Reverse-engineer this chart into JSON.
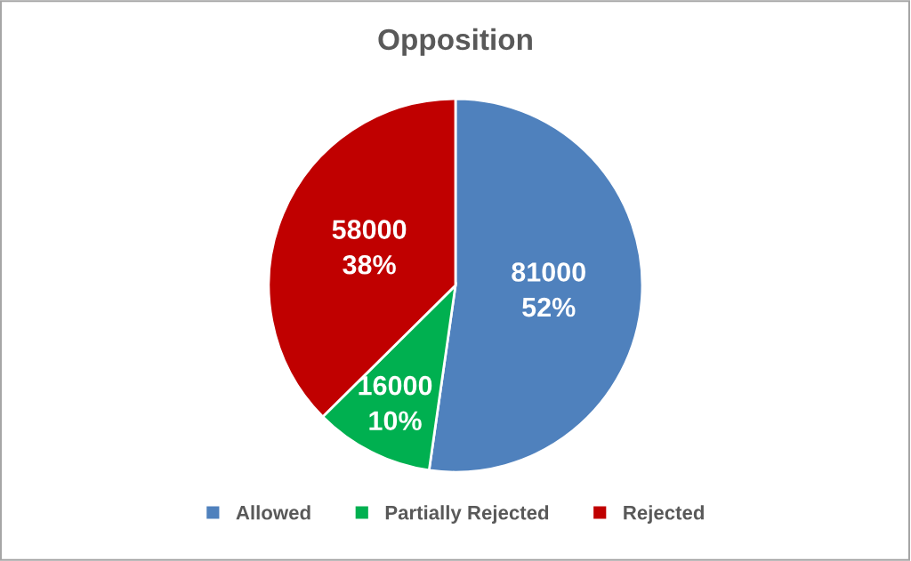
{
  "chart_data": {
    "type": "pie",
    "title": "Opposition",
    "categories": [
      "Allowed",
      "Partially Rejected",
      "Rejected"
    ],
    "values": [
      81000,
      16000,
      58000
    ],
    "colors": [
      "#4f81bd",
      "#00b050",
      "#c00000"
    ],
    "value_labels": [
      "81000\n52%",
      "16000\n10%",
      "58000\n38%"
    ],
    "legend": "bottom"
  }
}
